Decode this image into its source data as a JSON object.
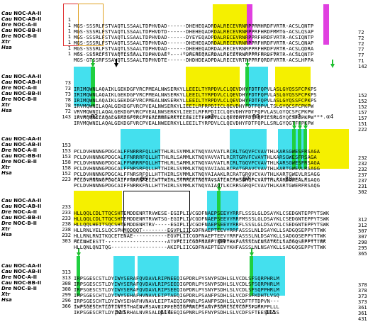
{
  "species": [
    {
      "name": "Cau",
      "suffix": " NOC-AA-II"
    },
    {
      "name": "Cau",
      "suffix": " NOC-AB-II"
    },
    {
      "name": "Dre",
      "suffix": " NOC-A-II"
    },
    {
      "name": "Cau",
      "suffix": " NOC-BB-II"
    },
    {
      "name": "Dre",
      "suffix": " NOC-B-II"
    },
    {
      "name": "Xtr",
      "suffix": ""
    },
    {
      "name": "Hsa",
      "suffix": ""
    }
  ],
  "blocks": [
    {
      "start": [
        "1",
        "1",
        "1",
        "1",
        "1",
        "1",
        "1"
      ],
      "seqs": [
        "MGS-SSSRLFSTVAQTLSSAALTDPHVDAD------DHEHEQADRDALRECEVRNRPPRMHRDFVRTR-ACSLQNTP",
        "MGS-SSSRLFSTVAQTLSSAALTDPHVDTD------DHEHEQADRDALRECEVRNRPPRFHRDFMMTG-ACSLQSAP",
        "MGS-SSSRLFSTVAQTLSSAALTDPHVDAD------DYEYEQADPDALRECEVRNRPPRFHRDFVRTR-ACSIQNTP",
        "MGS-SSSRLFSTVAQTLSSAALTDPHVDAD------DHEHEQADRDALRECEVRNRPPRFHRDFVRTR-ACSLQNAP",
        "MGS-SSSRLFSTVAQTLSSAALTDPHVDAD------DHEHEQADRDALRECEVRNRPPRFHRDFVRTR-ACSLQDRA",
        "MGS-SSSRLFSTVAQTLSSAALTDPHVDAE------DHEHEQAERDALRECEVRNRPPRFHRDFVRTR-ACSLQNTP",
        "MGS-GTSSRFSSAVQTLSSAALTDPHVDTE------DHDHDEADPDALRECEVRTRPPRFQRDFVRTR-ACSLHPPA"
      ],
      "end": [
        "72",
        "72",
        "72",
        "77",
        "77",
        "71",
        "142"
      ],
      "cons": " *:  :*:*** ::***:** .: ::  .**.  :*.* **** *: :*:***:.**** * ..*:  .  *:    "
    },
    {
      "start": [
        "73",
        "73",
        "73",
        "78",
        "78",
        "72",
        "143"
      ],
      "seqs": [
        "IRIMQWNLAQAIKLGEKDGFVRCPMEALNWSERKYLLEEILTYRPDVLCLQEVDHYFDTFQPVLASLGYQSSFCPKPS",
        "IRIMQWNLAQAIKLGEKDGFVRCPMEALNWSERKYLLEEILTYRPDVLCLQEVDHYFDTFQPVLASLGYQSSFCPKPS",
        "IRIMQWNLAQAIKLGEKDGFVRCPMEALNWSERKYLLEEILTYRPDVLCLQEVDHYFDTFQPVLASLGYQSSFCPKPS",
        "IRVMQWNILAQALGEKDGFVRCPVEALNWSERKYLIEEILRFRPDIICLQEVDHYFDTFQPVLTSLGYQCSFCPKPW",
        "VRVMQWNILAQALGEKDGFVRCPVEALNWSERKYLIEEILRFRPDIICLQEVDHYFDTFQPVLASLGYQCSFCPKPW",
        "IRVMQWNILAQALGEKDGFVRCPVEALNWEERKYLLEEILTFRPDVLCLQEVDHYFDTFQPILSRLGYQCSFCPKPW",
        "IRVMQWNILAQALGEKDGFVRCPVEALNWEERKYLLEEILTYRPDVLCLQEVDHYFDTFQPLLSRLGYQGTFFPKPW"
      ],
      "end": [
        "152",
        "152",
        "152",
        "157",
        "157",
        "151",
        "222"
      ],
      "cons": ":*:****:***:*:*******:**:*****.******::**:.***:.:****************:*: ****.:* ***."
    },
    {
      "start": [
        "153",
        "153",
        "153",
        "158",
        "158",
        "152",
        "223"
      ],
      "seqs": [
        "PCLDVHNNNGPDGCALFFNRRRFQLLHTTHLRLSVMMLKTNQVAVVATLRCRLTGQVFCVAVTHLKARSGWESFRSAGA",
        "PCLDVHNNNGPDGCALFFNRRRFQLLHTTHLRLSAMMLKTNQVAVVATLRCRTGRVFCVAVTHLKARSGWESFRSAGA",
        "PCLDVHNNNGPDGCALFFNRRRFQLLHTTHLRLSAMMLKTNQVAVVATLRCRLTGQVFCVAVTHLKARSGWESFRSAGA",
        "PCLDVHNNNGPDGCALFFNRSRFQLLHTTHIRLSVMMLKTNQVAVIAALRCRATGRAVCVAVTHLKARTGWEVLRSAGG",
        "PCLDVHNNNGPDGCALFFNRSRFQLLHTTHIRLSVMMLKTNQVAIAAKLRCRATGRQVCVAVTHLKARTGWEVLRSAGG",
        "PCLDVHNNNGPDGCAIFFNRRKFELLHTTHIRLSVMMLKTNQVAVSATLRCRHSGRQFCVAVTHLKARSGWEALRSAQG",
        "PCLDVHNNNGPDGCAIFFNRRKFNLLHTTHIRLSVMMLKTNQVAIAQTLKCRRSGRQFCVAVTHLKARTGWERFRSAQG"
      ],
      "end": [
        "232",
        "232",
        "232",
        "237",
        "237",
        "231",
        "302"
      ],
      "cons": "****:***:***:****:*:******.**:* .***********::***.**:*****.:****.** *:***.*.  "
    },
    {
      "start": [
        "233",
        "233",
        "233",
        "238",
        "238",
        "232",
        "303"
      ],
      "seqs": [
        "HLLQQLCDLTTQCSHTEMDDENRTRVWESE-EGIPLIVCGDFNAEPSEEVYRRFLSSSLGLDSAYKLCSEDGNTEPPYTSWK",
        "HLLQQLCDLTTQCSHTEMDDENRTRVWTSG-EGIPLIVCGDFNAEPSEEVYRRFMSSSLGLDSAYKLCSEDGNTEPPYTSWK",
        "HLLQQLHEITSQCSHTEMDDENRTRV-----EGIPLIVCGDFNAEPSEEVYRRFLSSSLGLDSAYKLCSEDGNTEPPYTSWK",
        "HLLRNLVELSLQCSPHMQDQQT--------EGVPLIICGDFNAEPTEEVYRRFASSSLNLDSAYKLLSADGQSEPPYTTWK",
        "HLLRNLRNITKQCETENAE-----------EGVPLIICGDFNAEPTEEVYRRFASSSLNLDSAYKLLSADGQSEPPYTTWK",
        "HLLNHLESTT--------------------ATVPLIICGDFNAEPTEEVYRKFASSSLNLNSAYKLLSADGQSEPPYTTWK",
        "HLLQNLQNITQG------------------AKIPLIICGDFNAEPTEEVYKHFASSSLNLNSAYKLLSADGQSEPPYTTWK"
      ],
      "end": [
        "312",
        "312",
        "307",
        "307",
        "298",
        "295",
        "365"
      ],
      "cons": "***:.*   : .                 .  :***:********.****..* ****.*:*****:*.**: *****:**"
    },
    {
      "start": [
        "313",
        "313",
        "308",
        "308",
        "299",
        "296",
        "366"
      ],
      "seqs": [
        "IRPSGESCSTLDYIWYSERAFQVDAVLRIPNEEQIGPDRLPYSNYPSDHLSLVCDLSFSQRPHRLM",
        "IRPSGESCSTLDYIWYSERAFQVDAVLRIPSEEQIGPDRLPYSNYPSDHLSLVCDLSFSQRPHRLM",
        "IRPSGESCSTLDYIWYSERAFQVDAVLRIPSEEQIGPDRLPYSNYPSDHLSLVCDLSFSQPPHRLM",
        "IRPSGESCHTLDYIWYSEHAFHVNAVLEIPTAEQIGPDRLPSANFPSDHLSLVCDFSFKDHTLVSQ",
        "IRPSGESCHTLDYIWYSEHAFHVNAVLEIPTAEQIGPNRLPSANFPSDHLSLVCDFTFTDPVN---",
        "IHPSGESCRTLDYIWYSTHALNVRSAVEIPPEEQIGPNRLPSANYPSDHLSLVCDFSFDRRPPLLL",
        "IKPSGESCRTLDYIWYSRHALNVRSALDLLTEEQIGPNRLPSFNYPSDHLSLVCDFSFTEESDGLS"
      ],
      "end": [
        "378",
        "378",
        "373",
        "373",
        "361",
        "361",
        "431"
      ],
      "cons": "*.****** *********  *:.* :.:.:. ******:*** *.************:.*        "
    }
  ],
  "labels": {
    "b2": "β2",
    "a2": "α2",
    "b3": "β3",
    "a3": "α3",
    "a4": "α4",
    "b5": "β5",
    "b7": "β7",
    "b8": "β8",
    "b9": "β9",
    "b13": "β13",
    "b14": "β14",
    "b15": "β15"
  },
  "colors": {
    "cyan": "#44e0ee",
    "yellow": "#f5f000",
    "magenta": "#e040e0",
    "green": "#20d040"
  }
}
